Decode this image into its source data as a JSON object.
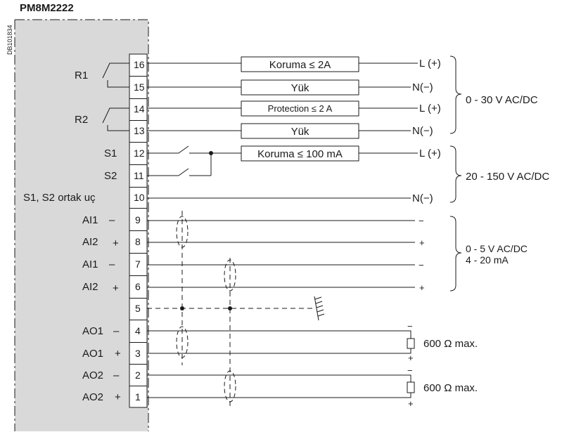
{
  "diagram": {
    "title": "PM8M2222",
    "doc_code": "DB101834",
    "left_labels": {
      "r1": "R1",
      "r2": "R2",
      "s1": "S1",
      "s2": "S2",
      "common": "S1, S2 ortak uç",
      "ai1_a": "AI1",
      "ai2_a": "AI2",
      "ai1_b": "AI1",
      "ai2_b": "AI2",
      "ao1_minus": "AO1",
      "ao1_plus": "AO1",
      "ao2_minus": "AO2",
      "ao2_plus": "AO2"
    },
    "signs": {
      "minus": "–",
      "plus": "+"
    },
    "pins": [
      "16",
      "15",
      "14",
      "13",
      "12",
      "11",
      "10",
      "9",
      "8",
      "7",
      "6",
      "5",
      "4",
      "3",
      "2",
      "1"
    ],
    "boxes": {
      "b16": "Koruma ≤ 2A",
      "b15": "Yük",
      "b14": "Protection ≤ 2 A",
      "b13": "Yük",
      "b12": "Koruma ≤ 100 mA"
    },
    "right_terms": {
      "r16": "L (+)",
      "r15": "N(−)",
      "r14": "L (+)",
      "r13": "N(−)",
      "r12": "L (+)",
      "r10": "N(−)",
      "r9": "−",
      "r8": "+",
      "r7": "−",
      "r6": "+",
      "ao1_top": "−",
      "ao1_bot": "+",
      "ao2_top": "−",
      "ao2_bot": "+"
    },
    "groups": {
      "g1": "0 - 30 V AC/DC",
      "g2": "20 - 150 V AC/DC",
      "g3_line1": "0 - 5 V AC/DC",
      "g3_line2": "4 - 20 mA"
    },
    "loads": {
      "ao1": "600 Ω max.",
      "ao2": "600 Ω max."
    }
  }
}
